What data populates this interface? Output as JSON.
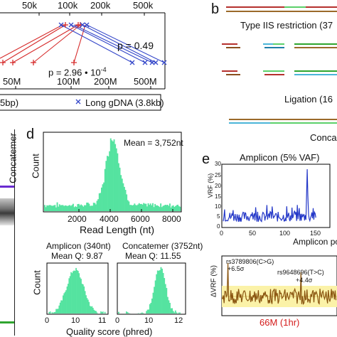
{
  "panel_c": {
    "top_ticks": [
      "50k",
      "100k",
      "200k",
      "500k"
    ],
    "bottom_ticks": [
      "50M",
      "100M",
      "200M",
      "500M"
    ],
    "p_upper": "p = 0.49",
    "p_lower_text": "p = 2.96 • 10",
    "p_lower_exp": "-4",
    "legend_partial": "5bp)",
    "legend_long": "Long gDNA (3.8kb)",
    "colors": {
      "red": "#d62b2b",
      "blue": "#3346c9"
    }
  },
  "gel": {
    "lane_label": "Concatemer",
    "colors": {
      "purple": "#6a2bd0",
      "green": "#2fa52f"
    }
  },
  "panel_d": {
    "letter": "d",
    "histogram": {
      "mean_label": "Mean = 3,752nt",
      "ylabel": "Count",
      "xlabel": "Read Length (nt)",
      "x_ticks": [
        "2000",
        "4000",
        "6000",
        "8000"
      ],
      "color": "#55e3a0"
    },
    "amplicon": {
      "title": "Amplicon (340nt)",
      "mean_q": "Mean Q: 9.87",
      "ylabel": "Count",
      "x_ticks": [
        "0",
        "10",
        "11"
      ]
    },
    "concatemer": {
      "title": "Concatemer (3752nt)",
      "mean_q": "Mean Q: 11.55",
      "x_ticks": [
        "0",
        "10",
        "12"
      ]
    },
    "shared_xlabel": "Quality score (phred)"
  },
  "panel_b": {
    "letter": "b",
    "restriction_label": "Type IIS restriction (37",
    "ligation_label": "Ligation (16",
    "concat_label": "Conca"
  },
  "panel_e": {
    "letter": "e",
    "top": {
      "title": "Amplicon (5% VAF)",
      "ylabel": "VRF (%)",
      "xlabel": "Amplicon po",
      "y_ticks": [
        "0",
        "5",
        "10",
        "15",
        "20",
        "25",
        "30"
      ],
      "x_ticks": [
        "0",
        "50",
        "100",
        "150"
      ],
      "line_color": "#2438c8"
    },
    "bottom": {
      "ylabel": "ΔVRF (%)",
      "annot1_line1": "rs3789806(C>G)",
      "annot1_line2": "+6.5σ",
      "annot2_line1": "rs9648696(T>C)",
      "annot2_line2": "+4.4σ",
      "footer": "66M (1hr)",
      "line_color": "#8a5510",
      "band_color": "#fbf2a8",
      "footer_color": "#d41b1b"
    }
  }
}
